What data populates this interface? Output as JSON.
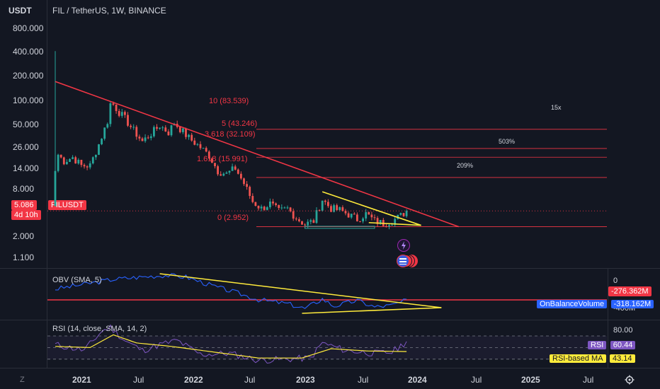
{
  "header": {
    "currency": "USDT",
    "symbol_title": "FIL / TetherUS, 1W, BINANCE"
  },
  "price_axis": {
    "ticks": [
      "800.000",
      "400.000",
      "200.000",
      "100.000",
      "50.000",
      "26.000",
      "14.000",
      "8.000",
      "2.000",
      "1.100"
    ],
    "current_price": "5.086",
    "countdown": "4d 10h",
    "symbol_tag": "FILUSDT"
  },
  "fib_levels": [
    {
      "label": "10 (83.539)",
      "price": 83.539
    },
    {
      "label": "5 (43.246)",
      "price": 43.246
    },
    {
      "label": "3.618 (32.109)",
      "price": 32.109
    },
    {
      "label": "1.618 (15.991)",
      "price": 15.991
    },
    {
      "label": "0 (2.952)",
      "price": 2.952
    }
  ],
  "target_notes": [
    "15x",
    "503%",
    "209%"
  ],
  "obv": {
    "title": "OBV (SMA, 5)",
    "axis_zero": "0",
    "axis_low": "-400M",
    "value_red": "-276.362M",
    "legend_label": "OnBalanceVolume",
    "legend_value": "-318.162M"
  },
  "rsi": {
    "title": "RSI (14, close, SMA, 14, 2)",
    "axis_top": "80.00",
    "rsi_label": "RSI",
    "rsi_value": "60.44",
    "ma_label": "RSI-based MA",
    "ma_value": "43.14"
  },
  "time_axis": {
    "ticks": [
      "2021",
      "Jul",
      "2022",
      "Jul",
      "2023",
      "Jul",
      "2024",
      "Jul",
      "2025",
      "Jul"
    ],
    "zoom_label": "Z",
    "settings_icon": "gear-icon"
  },
  "colors": {
    "background": "#131722",
    "up": "#26a69a",
    "down": "#ef5350",
    "trendline": "#f23645",
    "triangle": "#ffeb3b",
    "obv_line": "#2962ff",
    "rsi_line": "#7e57c2",
    "rsi_ma": "#ffeb3b"
  },
  "chart_data": [
    {
      "type": "candlestick",
      "title": "FIL / TetherUS, 1W, BINANCE",
      "scale": "log",
      "ylim": [
        0.9,
        1000
      ],
      "x_ticks": [
        "2021",
        "Jul",
        "2022",
        "Jul",
        "2023",
        "Jul",
        "2024",
        "Jul",
        "2025",
        "Jul"
      ],
      "series": [
        {
          "name": "FILUSDT",
          "anchors": [
            {
              "week": 0,
              "close": 20
            },
            {
              "week": 1,
              "close": 35
            },
            {
              "week": 3,
              "close": 28
            },
            {
              "week": 6,
              "close": 32
            },
            {
              "week": 9,
              "close": 24
            },
            {
              "week": 12,
              "close": 24
            },
            {
              "week": 15,
              "close": 50
            },
            {
              "week": 18,
              "close": 110
            },
            {
              "week": 19,
              "close": 200
            },
            {
              "week": 20,
              "close": 195
            },
            {
              "week": 22,
              "close": 150
            },
            {
              "week": 24,
              "close": 120
            },
            {
              "week": 27,
              "close": 80
            },
            {
              "week": 30,
              "close": 55
            },
            {
              "week": 33,
              "close": 72
            },
            {
              "week": 36,
              "close": 95
            },
            {
              "week": 39,
              "close": 75
            },
            {
              "week": 41,
              "close": 105
            },
            {
              "week": 43,
              "close": 85
            },
            {
              "week": 46,
              "close": 62
            },
            {
              "week": 50,
              "close": 45
            },
            {
              "week": 53,
              "close": 34
            },
            {
              "week": 56,
              "close": 20
            },
            {
              "week": 59,
              "close": 18
            },
            {
              "week": 62,
              "close": 22
            },
            {
              "week": 65,
              "close": 13
            },
            {
              "week": 68,
              "close": 7
            },
            {
              "week": 71,
              "close": 5.5
            },
            {
              "week": 74,
              "close": 6.5
            },
            {
              "week": 77,
              "close": 5
            },
            {
              "week": 80,
              "close": 5.5
            },
            {
              "week": 83,
              "close": 4
            },
            {
              "week": 86,
              "close": 3.2
            },
            {
              "week": 89,
              "close": 3.6
            },
            {
              "week": 92,
              "close": 7.5
            },
            {
              "week": 95,
              "close": 5.5
            },
            {
              "week": 98,
              "close": 5.2
            },
            {
              "week": 101,
              "close": 4.5
            },
            {
              "week": 104,
              "close": 3.8
            },
            {
              "week": 107,
              "close": 4.6
            },
            {
              "week": 110,
              "close": 3.6
            },
            {
              "week": 113,
              "close": 3.3
            },
            {
              "week": 116,
              "close": 3.6
            },
            {
              "week": 119,
              "close": 4.3
            },
            {
              "week": 121,
              "close": 5.086
            }
          ]
        }
      ],
      "trendlines": [
        {
          "name": "descending-resistance",
          "from": {
            "week": 0,
            "price": 430
          },
          "to": {
            "week": 139,
            "price": 2.95
          }
        },
        {
          "name": "triangle-upper",
          "from": {
            "week": 92,
            "price": 9.8
          },
          "to": {
            "week": 126,
            "price": 3.1
          }
        },
        {
          "name": "triangle-lower",
          "from": {
            "week": 108,
            "price": 3.4
          },
          "to": {
            "week": 126,
            "price": 3.1
          }
        }
      ]
    },
    {
      "type": "line",
      "title": "OBV (SMA, 5)",
      "series": [
        {
          "name": "OBV",
          "points": [
            {
              "week": 0,
              "value": -180
            },
            {
              "week": 20,
              "value": -60
            },
            {
              "week": 30,
              "value": -30
            },
            {
              "week": 38,
              "value": -10
            },
            {
              "week": 45,
              "value": -30
            },
            {
              "week": 55,
              "value": -150
            },
            {
              "week": 62,
              "value": -220
            },
            {
              "week": 70,
              "value": -310
            },
            {
              "week": 80,
              "value": -360
            },
            {
              "week": 86,
              "value": -420
            },
            {
              "week": 92,
              "value": -300
            },
            {
              "week": 96,
              "value": -390
            },
            {
              "week": 104,
              "value": -320
            },
            {
              "week": 110,
              "value": -400
            },
            {
              "week": 116,
              "value": -380
            },
            {
              "week": 121,
              "value": -318
            }
          ]
        }
      ]
    },
    {
      "type": "line",
      "title": "RSI (14, close, SMA, 14, 2)",
      "ylim": [
        20,
        90
      ],
      "series": [
        {
          "name": "RSI",
          "points": [
            {
              "week": 0,
              "value": 55
            },
            {
              "week": 10,
              "value": 45
            },
            {
              "week": 16,
              "value": 78
            },
            {
              "week": 19,
              "value": 85
            },
            {
              "week": 24,
              "value": 62
            },
            {
              "week": 30,
              "value": 45
            },
            {
              "week": 36,
              "value": 55
            },
            {
              "week": 42,
              "value": 62
            },
            {
              "week": 50,
              "value": 38
            },
            {
              "week": 60,
              "value": 40
            },
            {
              "week": 70,
              "value": 28
            },
            {
              "week": 80,
              "value": 30
            },
            {
              "week": 88,
              "value": 32
            },
            {
              "week": 92,
              "value": 58
            },
            {
              "week": 100,
              "value": 45
            },
            {
              "week": 110,
              "value": 40
            },
            {
              "week": 116,
              "value": 42
            },
            {
              "week": 121,
              "value": 60.44
            }
          ]
        },
        {
          "name": "RSI-based MA",
          "points": [
            {
              "week": 0,
              "value": 52
            },
            {
              "week": 12,
              "value": 50
            },
            {
              "week": 20,
              "value": 72
            },
            {
              "week": 28,
              "value": 58
            },
            {
              "week": 40,
              "value": 52
            },
            {
              "week": 55,
              "value": 42
            },
            {
              "week": 70,
              "value": 32
            },
            {
              "week": 85,
              "value": 32
            },
            {
              "week": 95,
              "value": 48
            },
            {
              "week": 108,
              "value": 44
            },
            {
              "week": 121,
              "value": 43.14
            }
          ]
        }
      ]
    }
  ]
}
